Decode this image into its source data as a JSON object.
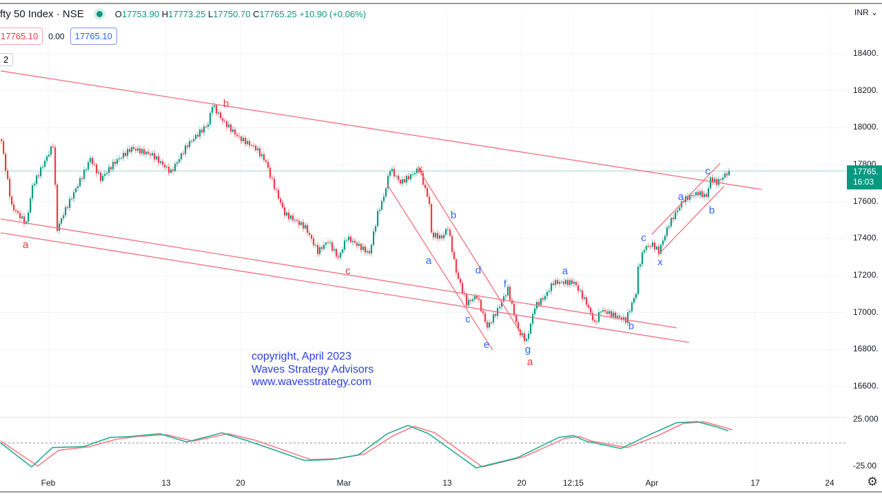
{
  "header": {
    "symbol": "fty 50 Index · NSE",
    "open_label": "O",
    "open": "17753.90",
    "high_label": "H",
    "high": "17773.25",
    "low_label": "L",
    "low": "17750.70",
    "close_label": "C",
    "close": "17765.25",
    "change": "+10.90 (+0.06%)",
    "status_color": "#089981"
  },
  "order_boxes": {
    "sell": "17765.10",
    "spread": "0.00",
    "buy": "17765.10"
  },
  "interval_badge": "2",
  "currency": "INR",
  "price_tag": {
    "price": "17765.",
    "time": "16:03"
  },
  "watermark": [
    "copyright, April 2023",
    "Waves Strategy Advisors",
    "www.wavesstrategy.com"
  ],
  "colors": {
    "up": "#089981",
    "down": "#f23645",
    "trendline": "#f26d7d",
    "wave_blue": "#2962ff",
    "wave_red": "#e53935",
    "osc_green": "#22ab94",
    "osc_red": "#f77c80"
  },
  "chart_data": {
    "type": "candlestick",
    "title": "",
    "price_axis": {
      "ticks": [
        18400,
        18200,
        18000,
        17800,
        17600,
        17400,
        17200,
        17000,
        16800,
        16600
      ],
      "labels": [
        "18400.",
        "18200.",
        "18000.",
        "17800.",
        "17600.",
        "17400.",
        "17200.",
        "17000.",
        "16800.",
        "16600."
      ],
      "range": [
        16550,
        18450
      ]
    },
    "time_axis": {
      "labels": [
        "Feb",
        "13",
        "20",
        "Mar",
        "13",
        "20",
        "12:15",
        "Apr",
        "17",
        "24"
      ],
      "label_bars": [
        23,
        80,
        116,
        166,
        216,
        252,
        277,
        315,
        365,
        401
      ]
    },
    "last_price": 17765.25,
    "price_path": [
      [
        0,
        17927
      ],
      [
        2,
        17778
      ],
      [
        5,
        17573
      ],
      [
        12,
        17480
      ],
      [
        15,
        17684
      ],
      [
        25,
        17908
      ],
      [
        27,
        17450
      ],
      [
        30,
        17535
      ],
      [
        40,
        17759
      ],
      [
        43,
        17834
      ],
      [
        48,
        17722
      ],
      [
        55,
        17815
      ],
      [
        63,
        17889
      ],
      [
        73,
        17852
      ],
      [
        82,
        17759
      ],
      [
        90,
        17908
      ],
      [
        100,
        18020
      ],
      [
        102,
        18124
      ],
      [
        107,
        18038
      ],
      [
        115,
        17945
      ],
      [
        123,
        17889
      ],
      [
        128,
        17815
      ],
      [
        130,
        17740
      ],
      [
        137,
        17535
      ],
      [
        147,
        17461
      ],
      [
        153,
        17330
      ],
      [
        158,
        17386
      ],
      [
        163,
        17293
      ],
      [
        167,
        17405
      ],
      [
        172,
        17368
      ],
      [
        178,
        17319
      ],
      [
        182,
        17535
      ],
      [
        185,
        17628
      ],
      [
        188,
        17778
      ],
      [
        193,
        17703
      ],
      [
        198,
        17740
      ],
      [
        202,
        17778
      ],
      [
        207,
        17591
      ],
      [
        208,
        17423
      ],
      [
        213,
        17405
      ],
      [
        216,
        17461
      ],
      [
        220,
        17219
      ],
      [
        225,
        17051
      ],
      [
        230,
        17088
      ],
      [
        235,
        16920
      ],
      [
        240,
        17014
      ],
      [
        245,
        17126
      ],
      [
        250,
        16902
      ],
      [
        254,
        16846
      ],
      [
        258,
        17032
      ],
      [
        263,
        17088
      ],
      [
        267,
        17163
      ],
      [
        272,
        17163
      ],
      [
        277,
        17163
      ],
      [
        283,
        17051
      ],
      [
        287,
        16939
      ],
      [
        290,
        17014
      ],
      [
        298,
        16977
      ],
      [
        302,
        16958
      ],
      [
        307,
        17107
      ],
      [
        308,
        17237
      ],
      [
        311,
        17349
      ],
      [
        315,
        17368
      ],
      [
        318,
        17330
      ],
      [
        323,
        17480
      ],
      [
        330,
        17610
      ],
      [
        333,
        17628
      ],
      [
        337,
        17647
      ],
      [
        341,
        17628
      ],
      [
        343,
        17722
      ],
      [
        346,
        17703
      ],
      [
        348,
        17722
      ],
      [
        352,
        17766
      ]
    ],
    "trendlines": [
      {
        "from": [
          0,
          18307
        ],
        "to": [
          368,
          17666
        ]
      },
      {
        "from": [
          0,
          17506
        ],
        "to": [
          327,
          16917
        ]
      },
      {
        "from": [
          0,
          17431
        ],
        "to": [
          333,
          16838
        ]
      },
      {
        "from": [
          187,
          17692
        ],
        "to": [
          238,
          16797
        ]
      },
      {
        "from": [
          202,
          17778
        ],
        "to": [
          253,
          16864
        ]
      },
      {
        "from": [
          315,
          17423
        ],
        "to": [
          348,
          17807
        ]
      },
      {
        "from": [
          318,
          17312
        ],
        "to": [
          350,
          17684
        ]
      }
    ],
    "wave_labels": [
      {
        "text": "a",
        "bar": 12,
        "price": 17368,
        "color": "red"
      },
      {
        "text": "b",
        "bar": 109,
        "price": 18132,
        "color": "red"
      },
      {
        "text": "c",
        "bar": 168,
        "price": 17226,
        "color": "red"
      },
      {
        "text": "x",
        "bar": 203,
        "price": 17778,
        "color": "red"
      },
      {
        "text": "a",
        "bar": 207,
        "price": 17282,
        "color": "blue"
      },
      {
        "text": "b",
        "bar": 219,
        "price": 17528,
        "color": "blue"
      },
      {
        "text": "c",
        "bar": 226,
        "price": 16965,
        "color": "blue"
      },
      {
        "text": "d",
        "bar": 231,
        "price": 17230,
        "color": "blue"
      },
      {
        "text": "e",
        "bar": 235,
        "price": 16827,
        "color": "blue"
      },
      {
        "text": "f",
        "bar": 244,
        "price": 17155,
        "color": "blue"
      },
      {
        "text": "g",
        "bar": 255,
        "price": 16801,
        "color": "blue"
      },
      {
        "text": "a",
        "bar": 256,
        "price": 16734,
        "color": "red"
      },
      {
        "text": "a",
        "bar": 273,
        "price": 17226,
        "color": "blue"
      },
      {
        "text": "b",
        "bar": 305,
        "price": 16928,
        "color": "blue"
      },
      {
        "text": "c",
        "bar": 311,
        "price": 17405,
        "color": "blue"
      },
      {
        "text": "x",
        "bar": 319,
        "price": 17274,
        "color": "blue"
      },
      {
        "text": "a",
        "bar": 329,
        "price": 17628,
        "color": "blue"
      },
      {
        "text": "b",
        "bar": 344,
        "price": 17554,
        "color": "blue"
      },
      {
        "text": "c",
        "bar": 342,
        "price": 17766,
        "color": "blue"
      }
    ],
    "oscillator": {
      "range": [
        -25,
        25
      ],
      "tick_labels": [
        "25.000",
        "-25.00"
      ],
      "zero_line": "dashed",
      "fast": [
        [
          0,
          0
        ],
        [
          15,
          -26
        ],
        [
          25,
          -5
        ],
        [
          40,
          -4
        ],
        [
          53,
          6
        ],
        [
          63,
          7
        ],
        [
          77,
          10
        ],
        [
          90,
          1
        ],
        [
          107,
          11
        ],
        [
          120,
          2
        ],
        [
          147,
          -19
        ],
        [
          160,
          -18
        ],
        [
          173,
          -13
        ],
        [
          187,
          10
        ],
        [
          197,
          19
        ],
        [
          207,
          10
        ],
        [
          230,
          -27
        ],
        [
          250,
          -16
        ],
        [
          270,
          6
        ],
        [
          277,
          8
        ],
        [
          283,
          2
        ],
        [
          300,
          -6
        ],
        [
          315,
          10
        ],
        [
          327,
          22
        ],
        [
          337,
          23
        ],
        [
          347,
          17
        ],
        [
          352,
          13
        ]
      ],
      "slow": [
        [
          0,
          2
        ],
        [
          18,
          -25
        ],
        [
          28,
          -8
        ],
        [
          43,
          -4
        ],
        [
          56,
          4
        ],
        [
          66,
          7
        ],
        [
          80,
          9
        ],
        [
          93,
          2
        ],
        [
          110,
          10
        ],
        [
          123,
          3
        ],
        [
          150,
          -18
        ],
        [
          163,
          -17
        ],
        [
          176,
          -12
        ],
        [
          190,
          8
        ],
        [
          200,
          18
        ],
        [
          210,
          11
        ],
        [
          233,
          -26
        ],
        [
          253,
          -15
        ],
        [
          273,
          5
        ],
        [
          280,
          7
        ],
        [
          286,
          2
        ],
        [
          303,
          -5
        ],
        [
          318,
          8
        ],
        [
          330,
          21
        ],
        [
          340,
          23
        ],
        [
          350,
          17
        ],
        [
          354,
          14
        ]
      ]
    }
  }
}
